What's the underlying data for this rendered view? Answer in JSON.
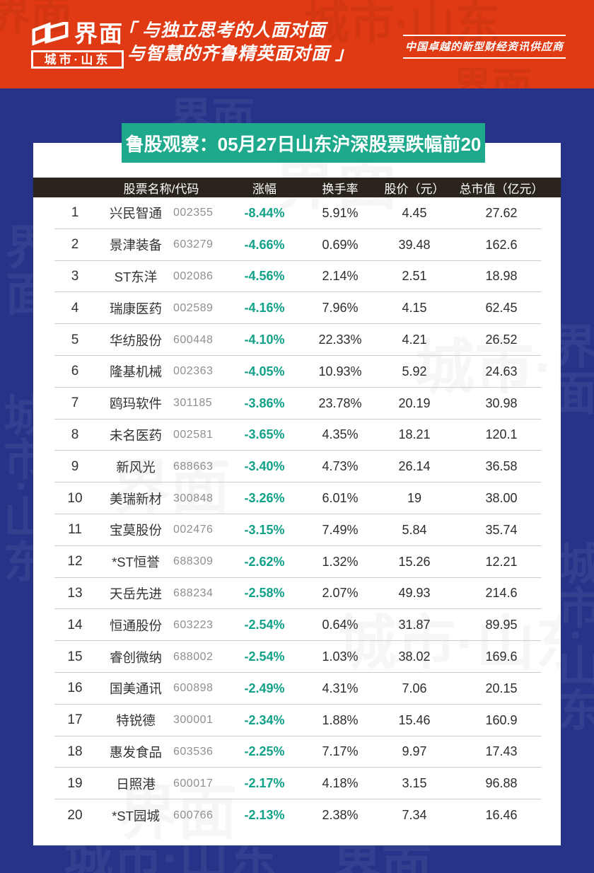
{
  "masthead": {
    "brand_name": "界面",
    "brand_region": "城市·山东",
    "slogan_line1": "「 与独立思考的人面对面",
    "slogan_line2": "与智慧的齐鲁精英面对面 」",
    "tagline": "中国卓越的新型财经资讯供应商"
  },
  "watermark": {
    "logo": "界面",
    "city": "城市·山东"
  },
  "colors": {
    "masthead_red": "#DF3A13",
    "body_blue": "#273389",
    "banner_teal": "#1FA98C",
    "table_header_dark": "#2B241D",
    "change_green": "#12A189",
    "code_gray": "#8F8F8F"
  },
  "chart_data": {
    "type": "table",
    "title": "鲁股观察：05月27日山东沪深股票跌幅前20",
    "columns": [
      "股票名称/代码",
      "涨幅",
      "换手率",
      "股价（元）",
      "总市值（亿元）"
    ],
    "rows": [
      {
        "rank": "1",
        "name": "兴民智通",
        "code": "002355",
        "change": "-8.44%",
        "turnover": "5.91%",
        "price": "4.45",
        "market_cap": "27.62"
      },
      {
        "rank": "2",
        "name": "景津装备",
        "code": "603279",
        "change": "-4.66%",
        "turnover": "0.69%",
        "price": "39.48",
        "market_cap": "162.6"
      },
      {
        "rank": "3",
        "name": "ST东洋",
        "code": "002086",
        "change": "-4.56%",
        "turnover": "2.14%",
        "price": "2.51",
        "market_cap": "18.98"
      },
      {
        "rank": "4",
        "name": "瑞康医药",
        "code": "002589",
        "change": "-4.16%",
        "turnover": "7.96%",
        "price": "4.15",
        "market_cap": "62.45"
      },
      {
        "rank": "5",
        "name": "华纺股份",
        "code": "600448",
        "change": "-4.10%",
        "turnover": "22.33%",
        "price": "4.21",
        "market_cap": "26.52"
      },
      {
        "rank": "6",
        "name": "隆基机械",
        "code": "002363",
        "change": "-4.05%",
        "turnover": "10.93%",
        "price": "5.92",
        "market_cap": "24.63"
      },
      {
        "rank": "7",
        "name": "鸥玛软件",
        "code": "301185",
        "change": "-3.86%",
        "turnover": "23.78%",
        "price": "20.19",
        "market_cap": "30.98"
      },
      {
        "rank": "8",
        "name": "未名医药",
        "code": "002581",
        "change": "-3.65%",
        "turnover": "4.35%",
        "price": "18.21",
        "market_cap": "120.1"
      },
      {
        "rank": "9",
        "name": "新风光",
        "code": "688663",
        "change": "-3.40%",
        "turnover": "4.73%",
        "price": "26.14",
        "market_cap": "36.58"
      },
      {
        "rank": "10",
        "name": "美瑞新材",
        "code": "300848",
        "change": "-3.26%",
        "turnover": "6.01%",
        "price": "19",
        "market_cap": "38.00"
      },
      {
        "rank": "11",
        "name": "宝莫股份",
        "code": "002476",
        "change": "-3.15%",
        "turnover": "7.49%",
        "price": "5.84",
        "market_cap": "35.74"
      },
      {
        "rank": "12",
        "name": "*ST恒誉",
        "code": "688309",
        "change": "-2.62%",
        "turnover": "1.32%",
        "price": "15.26",
        "market_cap": "12.21"
      },
      {
        "rank": "13",
        "name": "天岳先进",
        "code": "688234",
        "change": "-2.58%",
        "turnover": "2.07%",
        "price": "49.93",
        "market_cap": "214.6"
      },
      {
        "rank": "14",
        "name": "恒通股份",
        "code": "603223",
        "change": "-2.54%",
        "turnover": "0.64%",
        "price": "31.87",
        "market_cap": "89.95"
      },
      {
        "rank": "15",
        "name": "睿创微纳",
        "code": "688002",
        "change": "-2.54%",
        "turnover": "1.03%",
        "price": "38.02",
        "market_cap": "169.6"
      },
      {
        "rank": "16",
        "name": "国美通讯",
        "code": "600898",
        "change": "-2.49%",
        "turnover": "4.31%",
        "price": "7.06",
        "market_cap": "20.15"
      },
      {
        "rank": "17",
        "name": "特锐德",
        "code": "300001",
        "change": "-2.34%",
        "turnover": "1.88%",
        "price": "15.46",
        "market_cap": "160.9"
      },
      {
        "rank": "18",
        "name": "惠发食品",
        "code": "603536",
        "change": "-2.25%",
        "turnover": "7.17%",
        "price": "9.97",
        "market_cap": "17.43"
      },
      {
        "rank": "19",
        "name": "日照港",
        "code": "600017",
        "change": "-2.17%",
        "turnover": "4.18%",
        "price": "3.15",
        "market_cap": "96.88"
      },
      {
        "rank": "20",
        "name": "*ST园城",
        "code": "600766",
        "change": "-2.13%",
        "turnover": "2.38%",
        "price": "7.34",
        "market_cap": "16.46"
      }
    ]
  }
}
